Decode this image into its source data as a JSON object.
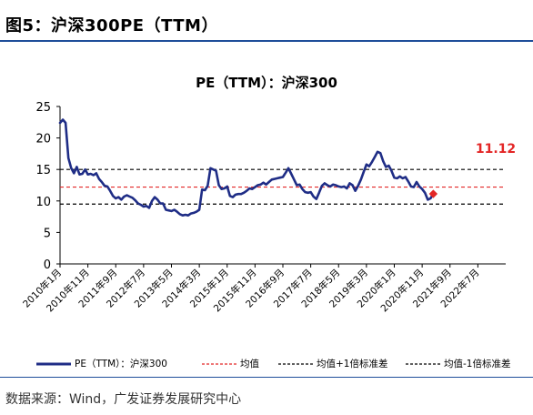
{
  "figure_title": "图5：沪深300PE（TTM）",
  "source": "数据来源：Wind，广发证券发展研究中心",
  "colors": {
    "pe_line": "#1f2d86",
    "mean_line": "#e32626",
    "band_line": "#000000",
    "current_label": "#e32626",
    "header_rule": "#1f4e9a"
  },
  "chart_data": {
    "type": "line",
    "title": "PE（TTM）：沪深300",
    "xlabel": "",
    "ylabel": "",
    "ylim": [
      0,
      25
    ],
    "yticks": [
      0,
      5,
      10,
      15,
      20,
      25
    ],
    "x_tick_labels": [
      "2010年1月",
      "2010年11月",
      "2011年9月",
      "2012年7月",
      "2013年5月",
      "2014年3月",
      "2015年1月",
      "2015年11月",
      "2016年9月",
      "2017年7月",
      "2018年5月",
      "2019年3月",
      "2020年1月",
      "2020年11月",
      "2021年9月",
      "2022年7月"
    ],
    "x_tick_months": [
      0,
      10,
      20,
      30,
      40,
      50,
      60,
      70,
      80,
      90,
      100,
      110,
      120,
      130,
      140,
      150
    ],
    "x_range_months": [
      0,
      160
    ],
    "grid": false,
    "legend_position": "bottom",
    "series": [
      {
        "name": "PE（TTM）：沪深300",
        "style": "solid",
        "points": [
          [
            0,
            22.4
          ],
          [
            1,
            22.9
          ],
          [
            2,
            22.4
          ],
          [
            3,
            16.8
          ],
          [
            4,
            15.2
          ],
          [
            5,
            14.4
          ],
          [
            6,
            15.4
          ],
          [
            7,
            14.2
          ],
          [
            8,
            14.3
          ],
          [
            9,
            15.0
          ],
          [
            10,
            14.2
          ],
          [
            11,
            14.3
          ],
          [
            12,
            14.1
          ],
          [
            13,
            14.4
          ],
          [
            14,
            13.5
          ],
          [
            15,
            13.0
          ],
          [
            16,
            12.4
          ],
          [
            17,
            12.3
          ],
          [
            18,
            11.6
          ],
          [
            19,
            10.8
          ],
          [
            20,
            10.4
          ],
          [
            21,
            10.6
          ],
          [
            22,
            10.2
          ],
          [
            23,
            10.7
          ],
          [
            24,
            10.9
          ],
          [
            25,
            10.7
          ],
          [
            26,
            10.5
          ],
          [
            27,
            10.1
          ],
          [
            28,
            9.6
          ],
          [
            29,
            9.4
          ],
          [
            30,
            9.1
          ],
          [
            31,
            9.2
          ],
          [
            32,
            8.9
          ],
          [
            33,
            10.0
          ],
          [
            34,
            10.6
          ],
          [
            35,
            10.2
          ],
          [
            36,
            9.6
          ],
          [
            37,
            9.6
          ],
          [
            38,
            8.6
          ],
          [
            39,
            8.5
          ],
          [
            40,
            8.4
          ],
          [
            41,
            8.6
          ],
          [
            42,
            8.3
          ],
          [
            43,
            7.9
          ],
          [
            44,
            7.7
          ],
          [
            45,
            7.8
          ],
          [
            46,
            7.7
          ],
          [
            47,
            8.0
          ],
          [
            48,
            8.1
          ],
          [
            49,
            8.3
          ],
          [
            50,
            8.6
          ],
          [
            51,
            11.8
          ],
          [
            52,
            11.7
          ],
          [
            53,
            12.4
          ],
          [
            54,
            15.2
          ],
          [
            55,
            15.0
          ],
          [
            56,
            14.8
          ],
          [
            57,
            12.5
          ],
          [
            58,
            11.9
          ],
          [
            59,
            12.0
          ],
          [
            60,
            12.3
          ],
          [
            61,
            10.8
          ],
          [
            62,
            10.6
          ],
          [
            63,
            11.0
          ],
          [
            64,
            11.1
          ],
          [
            65,
            11.1
          ],
          [
            66,
            11.3
          ],
          [
            67,
            11.6
          ],
          [
            68,
            12.0
          ],
          [
            69,
            11.9
          ],
          [
            70,
            12.2
          ],
          [
            71,
            12.5
          ],
          [
            72,
            12.6
          ],
          [
            73,
            12.9
          ],
          [
            74,
            12.6
          ],
          [
            75,
            13.0
          ],
          [
            76,
            13.4
          ],
          [
            77,
            13.5
          ],
          [
            78,
            13.6
          ],
          [
            79,
            13.7
          ],
          [
            80,
            13.8
          ],
          [
            81,
            14.5
          ],
          [
            82,
            15.2
          ],
          [
            83,
            14.3
          ],
          [
            84,
            13.4
          ],
          [
            85,
            12.5
          ],
          [
            86,
            12.6
          ],
          [
            87,
            11.9
          ],
          [
            88,
            11.4
          ],
          [
            89,
            11.3
          ],
          [
            90,
            11.4
          ],
          [
            91,
            10.7
          ],
          [
            92,
            10.3
          ],
          [
            93,
            11.3
          ],
          [
            94,
            12.4
          ],
          [
            95,
            12.8
          ],
          [
            96,
            12.5
          ],
          [
            97,
            12.3
          ],
          [
            98,
            12.6
          ],
          [
            99,
            12.5
          ],
          [
            100,
            12.3
          ],
          [
            101,
            12.2
          ],
          [
            102,
            12.3
          ],
          [
            103,
            12.0
          ],
          [
            104,
            12.8
          ],
          [
            105,
            12.5
          ],
          [
            106,
            11.6
          ],
          [
            107,
            12.4
          ],
          [
            108,
            13.4
          ],
          [
            109,
            14.6
          ],
          [
            110,
            15.8
          ],
          [
            111,
            15.5
          ],
          [
            112,
            16.2
          ],
          [
            113,
            17.0
          ],
          [
            114,
            17.8
          ],
          [
            115,
            17.6
          ],
          [
            116,
            16.3
          ],
          [
            117,
            15.4
          ],
          [
            118,
            15.6
          ],
          [
            119,
            14.8
          ],
          [
            120,
            13.7
          ],
          [
            121,
            13.6
          ],
          [
            122,
            13.9
          ],
          [
            123,
            13.6
          ],
          [
            124,
            13.8
          ],
          [
            125,
            13.1
          ],
          [
            126,
            12.3
          ],
          [
            127,
            12.2
          ],
          [
            128,
            13.0
          ],
          [
            129,
            12.3
          ],
          [
            130,
            11.9
          ],
          [
            131,
            11.3
          ],
          [
            132,
            10.2
          ],
          [
            133,
            10.4
          ],
          [
            134,
            11.1
          ]
        ]
      },
      {
        "name": "均值",
        "style": "dashed",
        "value": 12.2
      },
      {
        "name": "均值+1倍标准差",
        "style": "dashed",
        "value": 15.0
      },
      {
        "name": "均值-1倍标准差",
        "style": "dashed",
        "value": 9.5
      }
    ],
    "annotations": [
      {
        "text": "11.12",
        "x": 134,
        "y": 11.12
      }
    ]
  }
}
